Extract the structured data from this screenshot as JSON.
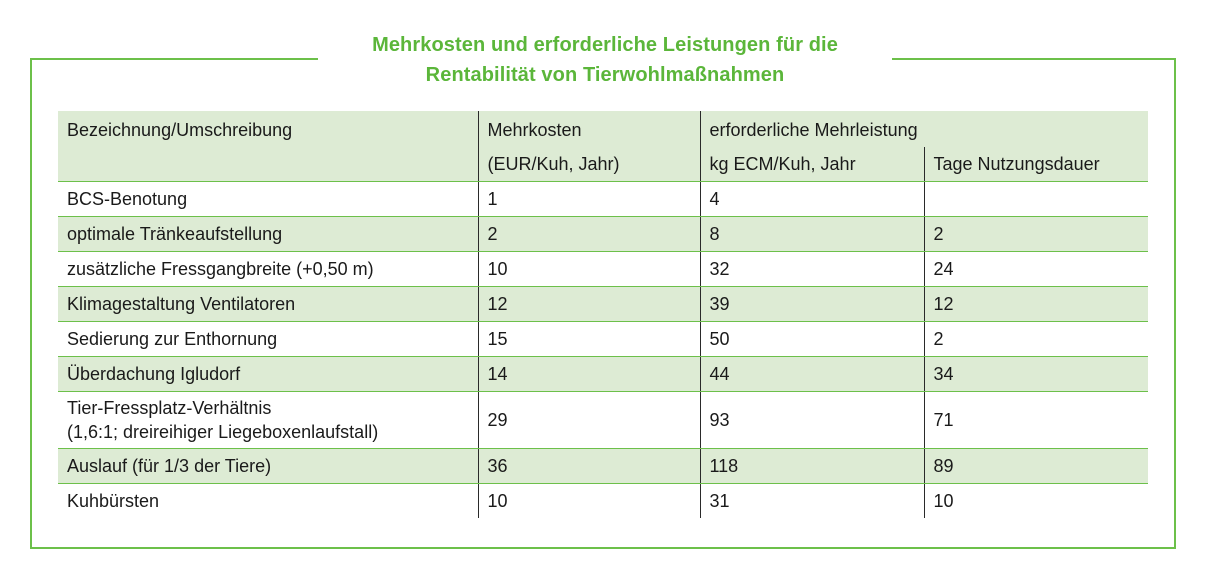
{
  "title_line1": "Mehrkosten und erforderliche Leistungen für die",
  "title_line2": "Rentabilität von Tierwohlmaßnahmen",
  "header": {
    "col1": "Bezeichnung/Umschreibung",
    "col2": "Mehrkosten",
    "col2_unit": "(EUR/Kuh, Jahr)",
    "group": "erforderliche Mehrleistung",
    "col3_unit": "kg ECM/Kuh, Jahr",
    "col4_unit": "Tage Nutzungsdauer"
  },
  "rows": [
    {
      "label": "BCS-Benotung",
      "cost": "1",
      "ecm": "4",
      "days": ""
    },
    {
      "label": "optimale Tränkeaufstellung",
      "cost": "2",
      "ecm": "8",
      "days": "2"
    },
    {
      "label": "zusätzliche Fressgangbreite (+0,50 m)",
      "cost": "10",
      "ecm": "32",
      "days": "24"
    },
    {
      "label": "Klimagestaltung Ventilatoren",
      "cost": "12",
      "ecm": "39",
      "days": "12"
    },
    {
      "label": "Sedierung zur Enthornung",
      "cost": "15",
      "ecm": "50",
      "days": "2"
    },
    {
      "label": "Überdachung Igludorf",
      "cost": "14",
      "ecm": "44",
      "days": "34"
    },
    {
      "label": "Tier-Fressplatz-Verhältnis",
      "label2": "(1,6:1; dreireihiger Liegeboxenlaufstall)",
      "cost": "29",
      "ecm": "93",
      "days": "71"
    },
    {
      "label": "Auslauf (für 1/3 der Tiere)",
      "cost": "36",
      "ecm": "118",
      "days": "89"
    },
    {
      "label": "Kuhbürsten",
      "cost": "10",
      "ecm": "31",
      "days": "10"
    }
  ]
}
